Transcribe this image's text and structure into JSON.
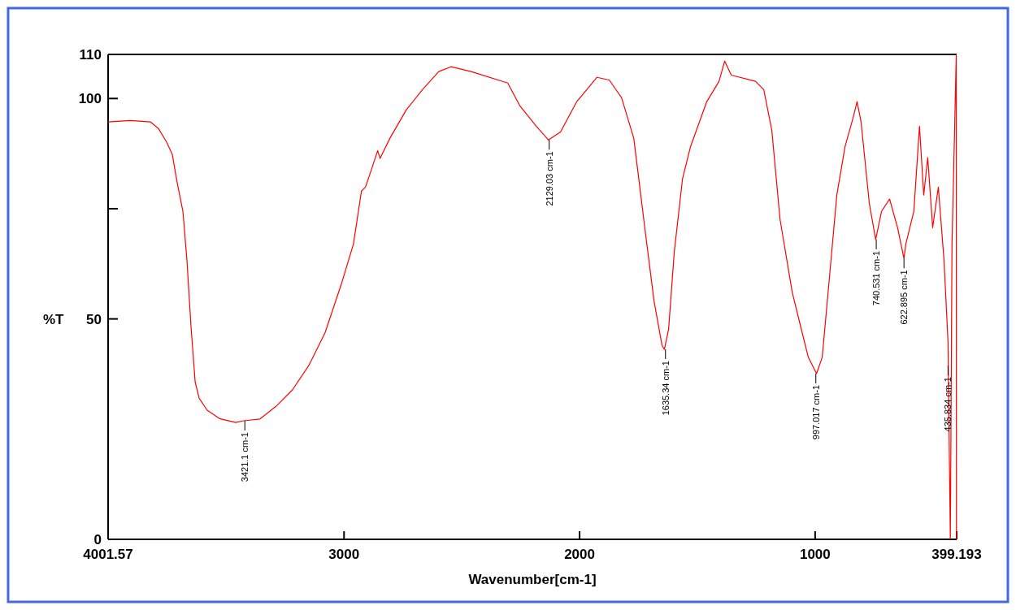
{
  "chart_data": {
    "type": "line",
    "xlabel": "Wavenumber[cm-1]",
    "ylabel": "%T",
    "xlim": [
      4001.57,
      399.193
    ],
    "xticks": [
      4001.57,
      3000,
      2000,
      1000,
      399.193
    ],
    "ylim": [
      0,
      110
    ],
    "yticks": [
      0,
      50,
      {
        "value": 75,
        "label": null
      },
      100,
      110
    ],
    "series": [
      {
        "color": "#ff0000",
        "x": [
          4001.57,
          3908,
          3822,
          3788,
          3753,
          3729,
          3708,
          3684,
          3667,
          3650,
          3632,
          3615,
          3581,
          3529,
          3460,
          3426,
          3357,
          3288,
          3219,
          3150,
          3081,
          3012,
          2960,
          2926,
          2909,
          2891,
          2857,
          2847,
          2805,
          2736,
          2667,
          2598,
          2546,
          2460,
          2305,
          2253,
          2184,
          2132,
          2081,
          2012,
          1926,
          1874,
          1822,
          1770,
          1719,
          1684,
          1650,
          1640,
          1622,
          1598,
          1563,
          1529,
          1460,
          1408,
          1384,
          1356,
          1253,
          1218,
          1184,
          1149,
          1097,
          1063,
          1029,
          994,
          970,
          942,
          908,
          873,
          839,
          822,
          805,
          770,
          743,
          718,
          684,
          650,
          622.895,
          615,
          581,
          557,
          539,
          522,
          501,
          477,
          453,
          436,
          426,
          419,
          408,
          401,
          400
        ],
        "values": [
          94.7,
          95.0,
          94.7,
          93.2,
          90.1,
          87.3,
          80.8,
          74.4,
          63.4,
          48.6,
          35.7,
          32.0,
          29.3,
          27.4,
          26.5,
          26.9,
          27.3,
          30.2,
          33.9,
          39.4,
          46.8,
          57.8,
          67.0,
          79.0,
          79.9,
          82.7,
          88.2,
          86.4,
          91.0,
          97.4,
          102.0,
          106.1,
          107.2,
          106.1,
          103.5,
          98.3,
          93.7,
          90.6,
          92.4,
          99.3,
          104.8,
          104.2,
          100.2,
          91.0,
          68.9,
          54.1,
          44.0,
          43.1,
          47.7,
          65.2,
          81.8,
          89.1,
          99.3,
          103.9,
          108.5,
          105.3,
          103.9,
          102.0,
          92.8,
          72.6,
          56.0,
          48.6,
          41.3,
          37.6,
          41.3,
          57.8,
          78.1,
          89.1,
          95.6,
          99.3,
          94.7,
          76.2,
          68.0,
          74.4,
          77.2,
          70.7,
          63.7,
          67.0,
          74.4,
          93.7,
          78.1,
          86.6,
          70.7,
          79.9,
          63.4,
          44.9,
          0,
          67.0,
          92.8,
          110,
          0
        ]
      }
    ],
    "annotations": [
      {
        "text": "3421.1 cm-1",
        "x": 3421.1,
        "y": 26.9
      },
      {
        "text": "2129.03 cm-1",
        "x": 2129.03,
        "y": 90.6
      },
      {
        "text": "1635.34 cm-1",
        "x": 1635.34,
        "y": 43.1
      },
      {
        "text": "997.017 cm-1",
        "x": 997.017,
        "y": 37.6
      },
      {
        "text": "740.531 cm-1",
        "x": 740.531,
        "y": 68.0
      },
      {
        "text": "622.895 cm-1",
        "x": 622.895,
        "y": 63.7
      },
      {
        "text": "435.834 cm-1",
        "x": 435.834,
        "y": 39.4
      }
    ],
    "grid": false,
    "marker": "none",
    "line_style": "solid"
  }
}
